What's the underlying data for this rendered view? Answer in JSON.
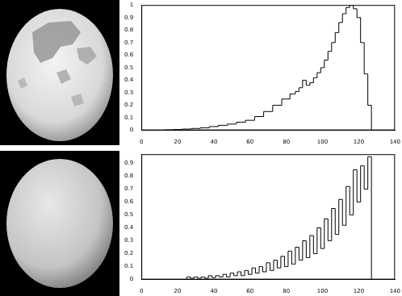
{
  "chart_data": [
    {
      "type": "line",
      "color": "#000000",
      "line_style": "steps",
      "grid": false,
      "x": [
        10,
        15,
        20,
        25,
        30,
        35,
        40,
        45,
        50,
        55,
        60,
        65,
        70,
        75,
        80,
        84,
        86,
        88,
        90,
        92,
        94,
        96,
        98,
        100,
        102,
        104,
        106,
        108,
        110,
        112,
        114,
        116,
        118,
        120,
        122,
        124,
        126,
        128
      ],
      "values": [
        0,
        0.003,
        0.006,
        0.01,
        0.015,
        0.02,
        0.03,
        0.04,
        0.05,
        0.065,
        0.08,
        0.11,
        0.15,
        0.2,
        0.25,
        0.29,
        0.31,
        0.34,
        0.4,
        0.36,
        0.38,
        0.42,
        0.46,
        0.5,
        0.56,
        0.63,
        0.7,
        0.78,
        0.86,
        0.93,
        0.98,
        1.0,
        0.97,
        0.9,
        0.7,
        0.45,
        0.2,
        0
      ],
      "xlim": [
        0,
        140
      ],
      "xticks": [
        0,
        20,
        40,
        60,
        80,
        100,
        120,
        140
      ],
      "ylim": [
        0,
        1
      ],
      "yticks": [
        0,
        0.1,
        0.2,
        0.3,
        0.4,
        0.5,
        0.6,
        0.7,
        0.8,
        0.9,
        1
      ]
    },
    {
      "type": "line",
      "color": "#000000",
      "line_style": "steps",
      "grid": false,
      "x": [
        24,
        26,
        28,
        30,
        32,
        34,
        36,
        38,
        40,
        42,
        44,
        46,
        48,
        50,
        52,
        54,
        56,
        58,
        60,
        62,
        64,
        66,
        68,
        70,
        72,
        74,
        76,
        78,
        80,
        82,
        84,
        86,
        88,
        90,
        92,
        94,
        96,
        98,
        100,
        102,
        104,
        106,
        108,
        110,
        112,
        114,
        116,
        118,
        120,
        122,
        124,
        126,
        128
      ],
      "values": [
        0,
        0.02,
        0.01,
        0.02,
        0.01,
        0.02,
        0.01,
        0.03,
        0.015,
        0.03,
        0.02,
        0.04,
        0.02,
        0.05,
        0.03,
        0.06,
        0.03,
        0.07,
        0.04,
        0.09,
        0.05,
        0.1,
        0.06,
        0.13,
        0.07,
        0.15,
        0.09,
        0.18,
        0.1,
        0.22,
        0.12,
        0.25,
        0.15,
        0.3,
        0.17,
        0.34,
        0.2,
        0.4,
        0.24,
        0.47,
        0.3,
        0.55,
        0.35,
        0.62,
        0.42,
        0.72,
        0.5,
        0.85,
        0.6,
        0.88,
        0.7,
        0.95,
        0
      ],
      "xlim": [
        0,
        140
      ],
      "xticks": [
        0,
        20,
        40,
        60,
        80,
        100,
        120,
        140
      ],
      "ylim": [
        0,
        0.97
      ],
      "yticks": [
        0,
        0.1,
        0.2,
        0.3,
        0.4,
        0.5,
        0.6,
        0.7,
        0.8,
        0.9
      ]
    }
  ]
}
